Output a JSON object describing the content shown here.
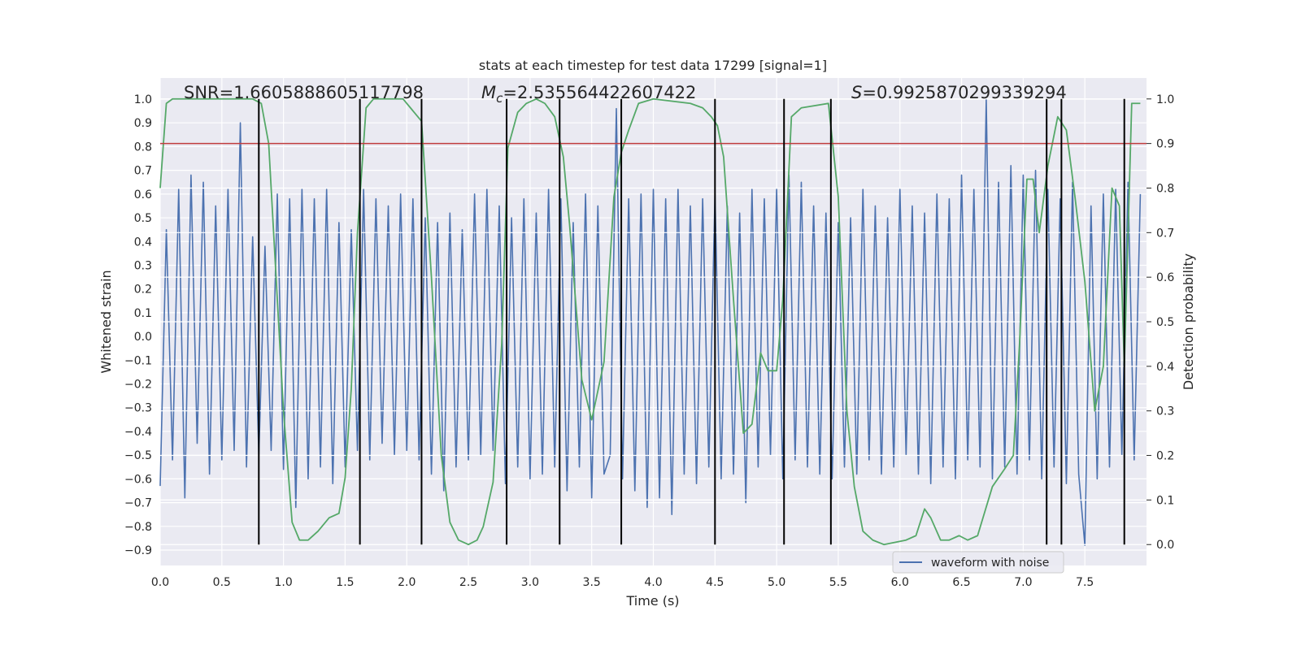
{
  "chart_data": {
    "type": "line",
    "title": "stats at each timestep for test data 17299 [signal=1]",
    "xlabel": "Time (s)",
    "ylabel": "Whitened strain",
    "y2label": "Detection probability",
    "annotations": [
      {
        "text": "SNR=1.6605888605117798"
      },
      {
        "symbol": "M",
        "subscript": "c",
        "text": "=2.535564422607422"
      },
      {
        "symbol": "S",
        "text": "=0.9925870299339294"
      }
    ],
    "xlim": [
      0,
      8.0
    ],
    "ylim": [
      -0.965,
      1.089
    ],
    "y2lim": [
      -0.047,
      1.047
    ],
    "xticks": [
      {
        "value": 0,
        "label": "0.0"
      },
      0.5,
      {
        "value": 1,
        "label": "1.0"
      },
      1.5,
      {
        "value": 2,
        "label": "2.0"
      },
      2.5,
      {
        "value": 3,
        "label": "3.0"
      },
      3.5,
      {
        "value": 4,
        "label": "4.0"
      },
      4.5,
      {
        "value": 5,
        "label": "5.0"
      },
      5.5,
      {
        "value": 6,
        "label": "6.0"
      },
      6.5,
      {
        "value": 7,
        "label": "7.0"
      },
      7.5
    ],
    "yticks": [
      {
        "value": -0.9,
        "label": "−0.9"
      },
      {
        "value": -0.8,
        "label": "−0.8"
      },
      {
        "value": -0.7,
        "label": "−0.7"
      },
      {
        "value": -0.6,
        "label": "−0.6"
      },
      {
        "value": -0.5,
        "label": "−0.5"
      },
      {
        "value": -0.4,
        "label": "−0.4"
      },
      {
        "value": -0.3,
        "label": "−0.3"
      },
      {
        "value": -0.2,
        "label": "−0.2"
      },
      {
        "value": -0.1,
        "label": "−0.1"
      },
      {
        "value": 0,
        "label": "0.0"
      },
      0.1,
      0.2,
      0.3,
      0.4,
      0.5,
      0.6,
      0.7,
      0.8,
      0.9,
      {
        "value": 1,
        "label": "1.0"
      }
    ],
    "y2ticks": [
      {
        "value": 0,
        "label": "0.0"
      },
      0.1,
      0.2,
      0.3,
      0.4,
      0.5,
      0.6,
      0.7,
      0.8,
      0.9,
      {
        "value": 1,
        "label": "1.0"
      }
    ],
    "grid": true,
    "legend": "lower right",
    "series": [
      {
        "name": "waveform with noise",
        "color": "#4c72b0",
        "x": [
          0,
          0.05,
          0.1,
          0.15,
          0.2,
          0.25,
          0.3,
          0.35,
          0.4,
          0.45,
          0.5,
          0.55,
          0.6,
          0.65,
          0.7,
          0.75,
          0.8,
          0.85,
          0.9,
          0.95,
          1,
          1.05,
          1.1,
          1.15,
          1.2,
          1.25,
          1.3,
          1.35,
          1.4,
          1.45,
          1.5,
          1.55,
          1.6,
          1.65,
          1.7,
          1.75,
          1.8,
          1.85,
          1.9,
          1.95,
          2,
          2.05,
          2.1,
          2.15,
          2.2,
          2.25,
          2.3,
          2.35,
          2.4,
          2.45,
          2.5,
          2.55,
          2.6,
          2.65,
          2.7,
          2.75,
          2.8,
          2.85,
          2.9,
          2.95,
          3,
          3.05,
          3.1,
          3.15,
          3.2,
          3.25,
          3.3,
          3.35,
          3.4,
          3.45,
          3.5,
          3.55,
          3.6,
          3.65,
          3.7,
          3.75,
          3.8,
          3.85,
          3.9,
          3.95,
          4,
          4.05,
          4.1,
          4.15,
          4.2,
          4.25,
          4.3,
          4.35,
          4.4,
          4.45,
          4.5,
          4.55,
          4.6,
          4.65,
          4.7,
          4.75,
          4.8,
          4.85,
          4.9,
          4.95,
          5,
          5.05,
          5.1,
          5.15,
          5.2,
          5.25,
          5.3,
          5.35,
          5.4,
          5.45,
          5.5,
          5.55,
          5.6,
          5.65,
          5.7,
          5.75,
          5.8,
          5.85,
          5.9,
          5.95,
          6,
          6.05,
          6.1,
          6.15,
          6.2,
          6.25,
          6.3,
          6.35,
          6.4,
          6.45,
          6.5,
          6.55,
          6.6,
          6.65,
          6.7,
          6.75,
          6.8,
          6.85,
          6.9,
          6.95,
          7,
          7.05,
          7.1,
          7.15,
          7.2,
          7.25,
          7.3,
          7.35,
          7.4,
          7.45,
          7.5,
          7.55,
          7.6,
          7.65,
          7.7,
          7.75,
          7.8,
          7.85,
          7.9,
          7.95
        ],
        "values": [
          -0.63,
          0.45,
          -0.52,
          0.62,
          -0.68,
          0.68,
          -0.45,
          0.65,
          -0.58,
          0.55,
          -0.52,
          0.62,
          -0.48,
          0.9,
          -0.55,
          0.42,
          -0.5,
          0.38,
          -0.48,
          0.6,
          -0.56,
          0.58,
          -0.72,
          0.62,
          -0.6,
          0.58,
          -0.55,
          0.62,
          -0.62,
          0.48,
          -0.55,
          0.45,
          -0.48,
          0.62,
          -0.52,
          0.58,
          -0.45,
          0.55,
          -0.5,
          0.6,
          -0.48,
          0.58,
          -0.52,
          0.5,
          -0.58,
          0.48,
          -0.65,
          0.52,
          -0.55,
          0.45,
          -0.52,
          0.6,
          -0.5,
          0.62,
          -0.48,
          0.55,
          -0.62,
          0.5,
          -0.55,
          0.58,
          -0.6,
          0.52,
          -0.58,
          0.62,
          -0.55,
          0.58,
          -0.65,
          0.48,
          -0.55,
          0.6,
          -0.68,
          0.55,
          -0.58,
          -0.5,
          0.96,
          -0.6,
          0.58,
          -0.65,
          0.6,
          -0.72,
          0.62,
          -0.68,
          0.58,
          -0.75,
          0.62,
          -0.58,
          0.55,
          -0.62,
          0.58,
          -0.55,
          0.6,
          -0.6,
          0.55,
          -0.58,
          0.52,
          -0.7,
          0.62,
          -0.55,
          0.58,
          -0.5,
          0.62,
          -0.6,
          0.68,
          -0.52,
          0.65,
          -0.55,
          0.55,
          -0.58,
          0.52,
          -0.6,
          0.48,
          -0.55,
          0.5,
          -0.58,
          0.62,
          -0.52,
          0.55,
          -0.58,
          0.5,
          -0.55,
          0.62,
          -0.5,
          0.55,
          -0.58,
          0.52,
          -0.62,
          0.6,
          -0.55,
          0.58,
          -0.6,
          0.68,
          -0.52,
          0.62,
          -0.55,
          1.0,
          -0.6,
          0.65,
          -0.55,
          0.72,
          -0.58,
          0.68,
          -0.52,
          0.7,
          -0.6,
          0.62,
          -0.55,
          0.58,
          -0.62,
          0.65,
          -0.58,
          -0.88,
          0.55,
          -0.6,
          0.6,
          -0.55,
          0.62,
          -0.5,
          0.65,
          -0.52,
          0.6
        ]
      },
      {
        "color": "#55a868",
        "axis": "y2",
        "x": [
          0,
          0.05,
          0.1,
          0.5,
          0.75,
          0.82,
          0.88,
          0.95,
          1.0,
          1.07,
          1.13,
          1.2,
          1.28,
          1.37,
          1.45,
          1.5,
          1.55,
          1.6,
          1.67,
          1.73,
          1.97,
          2.03,
          2.12,
          2.2,
          2.28,
          2.35,
          2.42,
          2.5,
          2.57,
          2.62,
          2.7,
          2.77,
          2.82,
          2.9,
          2.97,
          3.05,
          3.12,
          3.2,
          3.27,
          3.32,
          3.42,
          3.5,
          3.6,
          3.68,
          3.74,
          3.8,
          3.88,
          4.0,
          4.3,
          4.4,
          4.47,
          4.52,
          4.57,
          4.65,
          4.73,
          4.8,
          4.87,
          4.93,
          5.0,
          5.05,
          5.12,
          5.2,
          5.42,
          5.5,
          5.57,
          5.63,
          5.7,
          5.78,
          5.87,
          6.05,
          6.13,
          6.2,
          6.25,
          6.33,
          6.4,
          6.48,
          6.55,
          6.63,
          6.75,
          6.85,
          6.92,
          6.97,
          7.03,
          7.08,
          7.13,
          7.2,
          7.28,
          7.35,
          7.42,
          7.5,
          7.58,
          7.65,
          7.72,
          7.78,
          7.82,
          7.88,
          7.95
        ],
        "values": [
          0.8,
          0.99,
          1.0,
          1.0,
          1.0,
          0.99,
          0.9,
          0.55,
          0.3,
          0.05,
          0.01,
          0.01,
          0.03,
          0.06,
          0.07,
          0.15,
          0.35,
          0.7,
          0.98,
          1.0,
          1.0,
          0.98,
          0.95,
          0.6,
          0.2,
          0.05,
          0.01,
          0.0,
          0.01,
          0.04,
          0.14,
          0.45,
          0.89,
          0.97,
          0.99,
          1.0,
          0.99,
          0.96,
          0.87,
          0.72,
          0.37,
          0.28,
          0.41,
          0.78,
          0.88,
          0.93,
          0.99,
          1.0,
          0.99,
          0.98,
          0.96,
          0.94,
          0.87,
          0.55,
          0.25,
          0.27,
          0.43,
          0.39,
          0.39,
          0.55,
          0.96,
          0.98,
          0.99,
          0.78,
          0.3,
          0.13,
          0.03,
          0.01,
          0.0,
          0.01,
          0.02,
          0.08,
          0.06,
          0.01,
          0.01,
          0.02,
          0.01,
          0.02,
          0.13,
          0.17,
          0.2,
          0.45,
          0.82,
          0.82,
          0.7,
          0.85,
          0.96,
          0.93,
          0.78,
          0.59,
          0.3,
          0.4,
          0.8,
          0.76,
          0.4,
          0.99,
          0.99
        ]
      }
    ],
    "hline": {
      "y": 0.9,
      "axis": "y2",
      "color": "#c03d3e"
    },
    "vlines": {
      "x": [
        0.8,
        1.62,
        2.12,
        2.81,
        3.24,
        3.74,
        4.5,
        5.06,
        5.44,
        7.19,
        7.31,
        7.82
      ],
      "ymin": 0,
      "ymax": 1,
      "axis": "y2",
      "color": "#000000"
    }
  }
}
